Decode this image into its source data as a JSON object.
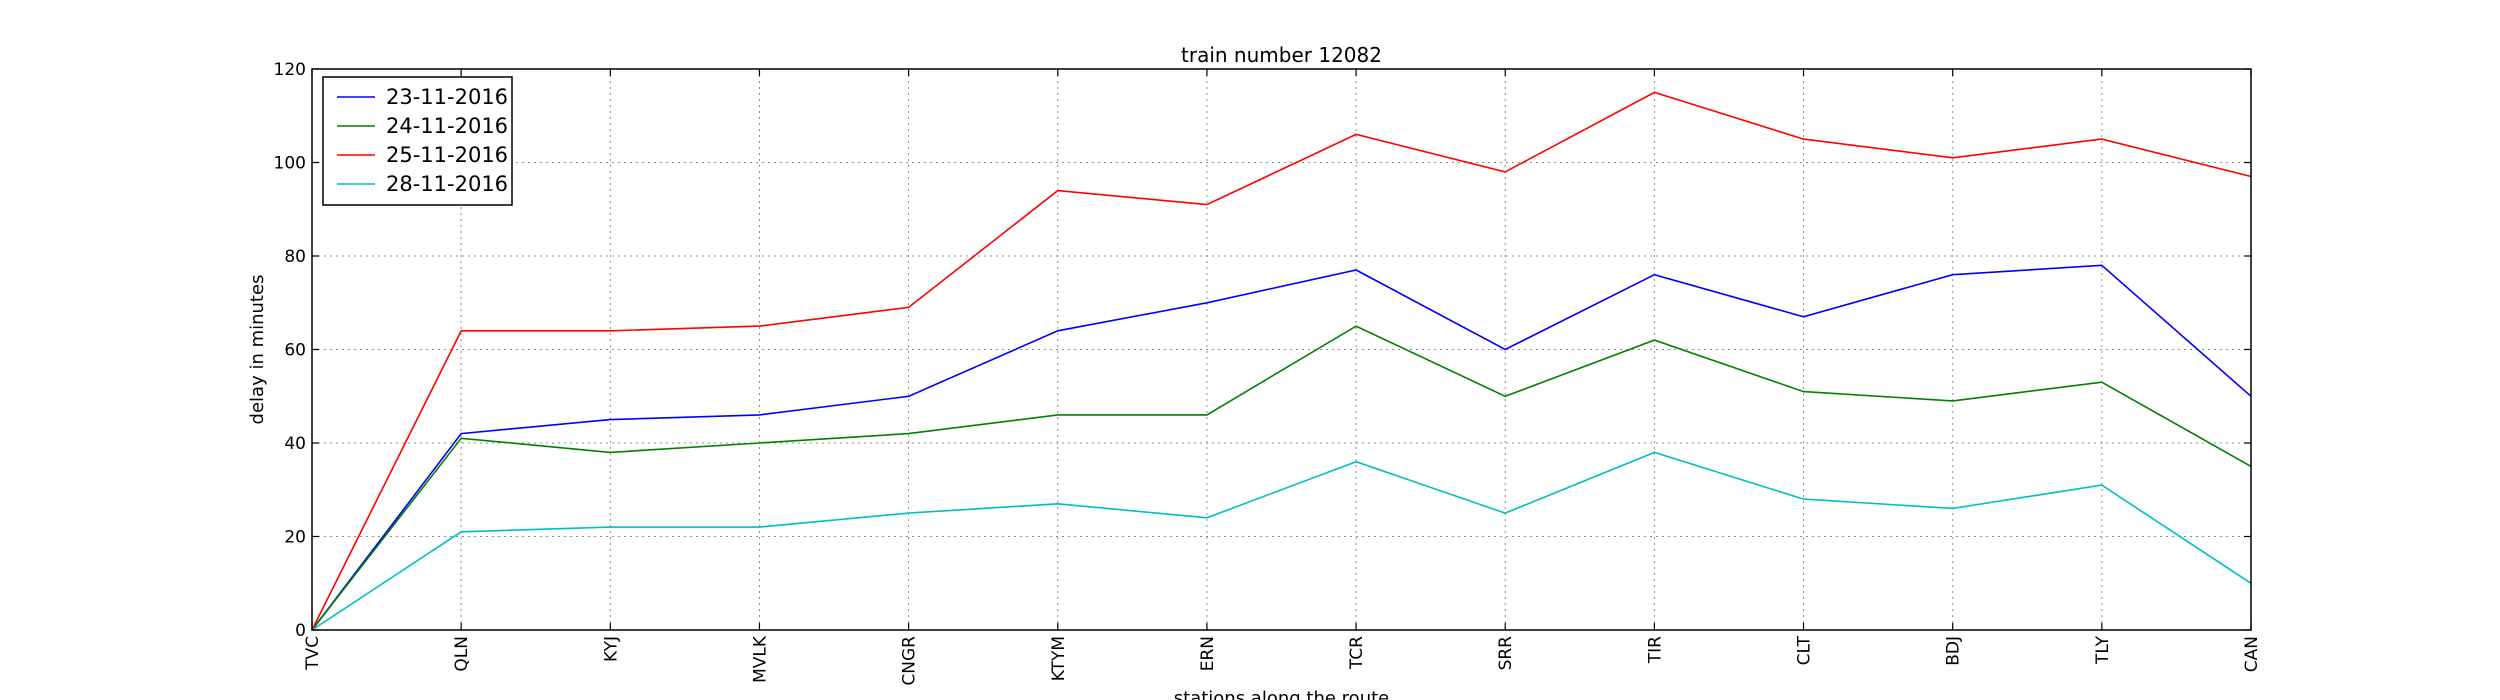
{
  "chart_data": {
    "type": "line",
    "title": "train number 12082",
    "xlabel": "stations along the route",
    "ylabel": "delay in minutes",
    "categories": [
      "TVC",
      "QLN",
      "KYJ",
      "MVLK",
      "CNGR",
      "KTYM",
      "ERN",
      "TCR",
      "SRR",
      "TIR",
      "CLT",
      "BDJ",
      "TLY",
      "CAN"
    ],
    "ylim": [
      0,
      120
    ],
    "yticks": [
      0,
      20,
      40,
      60,
      80,
      100,
      120
    ],
    "grid": true,
    "legend_position": "top-left",
    "series": [
      {
        "name": "23-11-2016",
        "color": "#0000ff",
        "values": [
          0,
          42,
          45,
          46,
          50,
          64,
          70,
          77,
          60,
          76,
          67,
          76,
          78,
          50
        ]
      },
      {
        "name": "24-11-2016",
        "color": "#008000",
        "values": [
          0,
          41,
          38,
          40,
          42,
          46,
          46,
          65,
          50,
          62,
          51,
          49,
          53,
          35
        ]
      },
      {
        "name": "25-11-2016",
        "color": "#ff0000",
        "values": [
          0,
          64,
          64,
          65,
          69,
          94,
          91,
          106,
          98,
          115,
          105,
          101,
          105,
          97
        ]
      },
      {
        "name": "28-11-2016",
        "color": "#00bfbf",
        "values": [
          0,
          21,
          22,
          22,
          25,
          27,
          24,
          36,
          25,
          38,
          28,
          26,
          31,
          10
        ]
      }
    ]
  }
}
